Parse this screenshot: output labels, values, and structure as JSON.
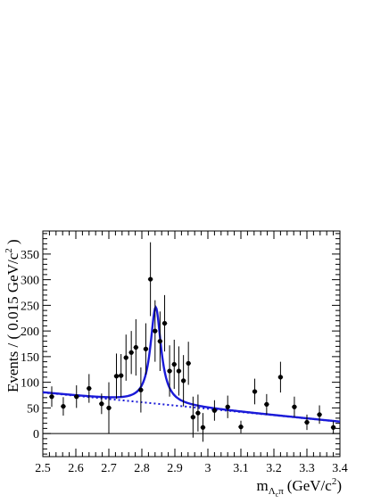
{
  "chart_data": {
    "type": "scatter",
    "xlabel": {
      "base": "m",
      "sub1": "Λ",
      "sub2": "c",
      "sub3": "π",
      "unit": "(GeV/c",
      "unit_sup": "2",
      "unit_close": ")"
    },
    "ylabel": {
      "text": "Events / ( 0.015 GeV/c",
      "sup": "2",
      "close": " )"
    },
    "xlim": [
      2.5,
      3.4
    ],
    "ylim": [
      -45,
      395
    ],
    "xticks": [
      "2.5",
      "2.6",
      "2.7",
      "2.8",
      "2.9",
      "3",
      "3.1",
      "3.2",
      "3.3",
      "3.4"
    ],
    "yticks": [
      "0",
      "50",
      "100",
      "150",
      "200",
      "250",
      "300",
      "350"
    ],
    "grid": false,
    "series": [
      {
        "kind": "data",
        "color": "#000000",
        "x_half_width": 0.0075,
        "points": [
          {
            "x": 2.527,
            "y": 72,
            "err": 20
          },
          {
            "x": 2.562,
            "y": 53,
            "err": 18
          },
          {
            "x": 2.602,
            "y": 72,
            "err": 22
          },
          {
            "x": 2.64,
            "y": 88,
            "err": 28
          },
          {
            "x": 2.678,
            "y": 58,
            "err": 20
          },
          {
            "x": 2.7,
            "y": 50,
            "err": 50
          },
          {
            "x": 2.723,
            "y": 112,
            "err": 44
          },
          {
            "x": 2.737,
            "y": 113,
            "err": 42
          },
          {
            "x": 2.752,
            "y": 148,
            "err": 45
          },
          {
            "x": 2.768,
            "y": 158,
            "err": 42
          },
          {
            "x": 2.782,
            "y": 168,
            "err": 55
          },
          {
            "x": 2.797,
            "y": 85,
            "err": 44
          },
          {
            "x": 2.812,
            "y": 165,
            "err": 50
          },
          {
            "x": 2.826,
            "y": 301,
            "err": 72
          },
          {
            "x": 2.84,
            "y": 200,
            "err": 60
          },
          {
            "x": 2.855,
            "y": 180,
            "err": 58
          },
          {
            "x": 2.869,
            "y": 215,
            "err": 55
          },
          {
            "x": 2.884,
            "y": 122,
            "err": 50
          },
          {
            "x": 2.898,
            "y": 135,
            "err": 48
          },
          {
            "x": 2.912,
            "y": 122,
            "err": 48
          },
          {
            "x": 2.926,
            "y": 103,
            "err": 50
          },
          {
            "x": 2.941,
            "y": 137,
            "err": 42
          },
          {
            "x": 2.955,
            "y": 32,
            "err": 40
          },
          {
            "x": 2.97,
            "y": 40,
            "err": 36
          },
          {
            "x": 2.985,
            "y": 12,
            "err": 28
          },
          {
            "x": 3.02,
            "y": 45,
            "err": 20
          },
          {
            "x": 3.06,
            "y": 52,
            "err": 22
          },
          {
            "x": 3.1,
            "y": 13,
            "err": 12
          },
          {
            "x": 3.142,
            "y": 82,
            "err": 25
          },
          {
            "x": 3.178,
            "y": 57,
            "err": 20
          },
          {
            "x": 3.22,
            "y": 110,
            "err": 30
          },
          {
            "x": 3.262,
            "y": 52,
            "err": 20
          },
          {
            "x": 3.3,
            "y": 22,
            "err": 15
          },
          {
            "x": 3.338,
            "y": 37,
            "err": 18
          },
          {
            "x": 3.38,
            "y": 12,
            "err": 12
          }
        ]
      },
      {
        "kind": "total-fit",
        "color": "#1a1ad8",
        "style": "solid",
        "background": {
          "a": 80,
          "slope": -63.3,
          "x0": 2.5
        },
        "peak": {
          "mass": 2.842,
          "gamma": 0.039,
          "amplitude": 188
        }
      },
      {
        "kind": "background-fit",
        "color": "#1a1ad8",
        "style": "dotted",
        "background": {
          "a": 80,
          "slope": -63.3,
          "x0": 2.5
        }
      }
    ]
  }
}
